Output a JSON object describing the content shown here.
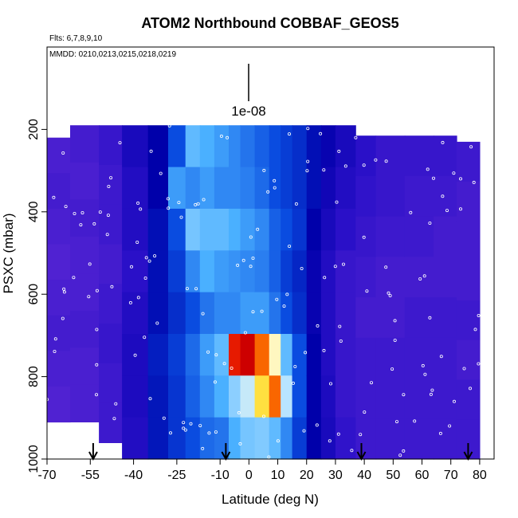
{
  "chart_data": {
    "type": "heatmap",
    "title": "ATOM2 Northbound COBBAF_GEOS5",
    "flights_note": "Flts: 6,7,8,9,10",
    "dates_note": "MMDD: 0210,0213,0215,0218,0219",
    "xlabel": "Latitude (deg N)",
    "ylabel": "PSXC (mbar)",
    "xlim": [
      -70,
      85
    ],
    "ylim": [
      1000,
      0
    ],
    "x_ticks": [
      -70,
      -55,
      -40,
      -25,
      -10,
      0,
      10,
      20,
      30,
      40,
      50,
      60,
      70,
      80
    ],
    "x_tick_labels": [
      "-70",
      "-55",
      "-40",
      "-25",
      "-10",
      "0",
      "10",
      "20",
      "30",
      "40",
      "50",
      "60",
      "70",
      "80"
    ],
    "y_ticks": [
      200,
      400,
      600,
      800,
      1000
    ],
    "y_tick_labels": [
      "200",
      "400",
      "600",
      "800",
      "1000"
    ],
    "scale_bar_label": "1e-08",
    "arrow_latitudes": [
      -54,
      -8,
      39,
      76
    ],
    "grid": false,
    "colormap": [
      "#6a2ed8",
      "#2a10c8",
      "#0000aa",
      "#0a4ce0",
      "#4ab0ff",
      "#b8e4ff",
      "#fffde0",
      "#ffe040",
      "#ff8000",
      "#e00000",
      "#a00000"
    ],
    "columns": [
      {
        "x0": -70,
        "x1": -62,
        "top": 220,
        "bottom": 910,
        "levels": [
          0.05,
          0.06,
          0.05,
          0.04,
          0.05,
          0.06,
          0.05,
          0.04
        ]
      },
      {
        "x0": -62,
        "x1": -52,
        "top": 190,
        "bottom": 910,
        "levels": [
          0.06,
          0.05,
          0.06,
          0.05,
          0.05,
          0.06,
          0.05,
          0.05
        ]
      },
      {
        "x0": -52,
        "x1": -44,
        "top": 190,
        "bottom": 960,
        "levels": [
          0.08,
          0.07,
          0.07,
          0.06,
          0.07,
          0.08,
          0.07,
          0.07
        ]
      },
      {
        "x0": -44,
        "x1": -35,
        "top": 190,
        "bottom": 1000,
        "levels": [
          0.14,
          0.12,
          0.12,
          0.1,
          0.12,
          0.13,
          0.13,
          0.12
        ]
      },
      {
        "x0": -35,
        "x1": -28,
        "top": 190,
        "bottom": 1000,
        "levels": [
          0.2,
          0.2,
          0.22,
          0.22,
          0.22,
          0.24,
          0.23,
          0.23
        ]
      },
      {
        "x0": -28,
        "x1": -22,
        "top": 190,
        "bottom": 1000,
        "levels": [
          0.3,
          0.38,
          0.3,
          0.28,
          0.26,
          0.28,
          0.27,
          0.27
        ]
      },
      {
        "x0": -22,
        "x1": -17,
        "top": 190,
        "bottom": 1000,
        "levels": [
          0.42,
          0.36,
          0.44,
          0.36,
          0.3,
          0.33,
          0.32,
          0.3
        ]
      },
      {
        "x0": -17,
        "x1": -12,
        "top": 190,
        "bottom": 1000,
        "levels": [
          0.4,
          0.38,
          0.42,
          0.4,
          0.34,
          0.38,
          0.36,
          0.33
        ]
      },
      {
        "x0": -12,
        "x1": -7,
        "top": 190,
        "bottom": 1000,
        "levels": [
          0.38,
          0.36,
          0.42,
          0.38,
          0.36,
          0.42,
          0.4,
          0.34
        ]
      },
      {
        "x0": -7,
        "x1": -3,
        "top": 190,
        "bottom": 1000,
        "levels": [
          0.36,
          0.36,
          0.4,
          0.37,
          0.36,
          0.88,
          0.46,
          0.4
        ]
      },
      {
        "x0": -3,
        "x1": 2,
        "top": 190,
        "bottom": 1000,
        "levels": [
          0.34,
          0.35,
          0.38,
          0.36,
          0.38,
          0.93,
          0.52,
          0.44
        ]
      },
      {
        "x0": 2,
        "x1": 7,
        "top": 190,
        "bottom": 1000,
        "levels": [
          0.32,
          0.33,
          0.36,
          0.35,
          0.38,
          0.82,
          0.7,
          0.45
        ]
      },
      {
        "x0": 7,
        "x1": 11,
        "top": 190,
        "bottom": 1000,
        "levels": [
          0.3,
          0.3,
          0.32,
          0.32,
          0.34,
          0.62,
          0.82,
          0.42
        ]
      },
      {
        "x0": 11,
        "x1": 15,
        "top": 190,
        "bottom": 1000,
        "levels": [
          0.28,
          0.28,
          0.3,
          0.28,
          0.3,
          0.42,
          0.5,
          0.36
        ]
      },
      {
        "x0": 15,
        "x1": 20,
        "top": 190,
        "bottom": 1000,
        "levels": [
          0.26,
          0.26,
          0.27,
          0.25,
          0.26,
          0.3,
          0.3,
          0.28
        ]
      },
      {
        "x0": 20,
        "x1": 25,
        "top": 190,
        "bottom": 1000,
        "levels": [
          0.22,
          0.22,
          0.2,
          0.18,
          0.18,
          0.2,
          0.2,
          0.2
        ]
      },
      {
        "x0": 25,
        "x1": 30,
        "top": 190,
        "bottom": 1000,
        "levels": [
          0.18,
          0.16,
          0.14,
          0.12,
          0.12,
          0.12,
          0.13,
          0.14
        ]
      },
      {
        "x0": 30,
        "x1": 37,
        "top": 190,
        "bottom": 1000,
        "levels": [
          0.14,
          0.12,
          0.1,
          0.08,
          0.08,
          0.08,
          0.08,
          0.09
        ]
      },
      {
        "x0": 37,
        "x1": 44,
        "top": 215,
        "bottom": 1000,
        "levels": [
          0.1,
          0.09,
          0.08,
          0.07,
          0.06,
          0.07,
          0.07,
          0.07
        ]
      },
      {
        "x0": 44,
        "x1": 54,
        "top": 215,
        "bottom": 1000,
        "levels": [
          0.08,
          0.08,
          0.07,
          0.06,
          0.06,
          0.07,
          0.07,
          0.07
        ]
      },
      {
        "x0": 54,
        "x1": 64,
        "top": 215,
        "bottom": 1000,
        "levels": [
          0.08,
          0.07,
          0.07,
          0.06,
          0.07,
          0.07,
          0.07,
          0.07
        ]
      },
      {
        "x0": 64,
        "x1": 72,
        "top": 215,
        "bottom": 1000,
        "levels": [
          0.08,
          0.07,
          0.06,
          0.06,
          0.07,
          0.07,
          0.07,
          0.07
        ]
      },
      {
        "x0": 72,
        "x1": 80,
        "top": 230,
        "bottom": 1000,
        "levels": [
          0.07,
          0.06,
          0.06,
          0.06,
          0.07,
          0.06,
          0.07,
          0.07
        ]
      }
    ]
  }
}
